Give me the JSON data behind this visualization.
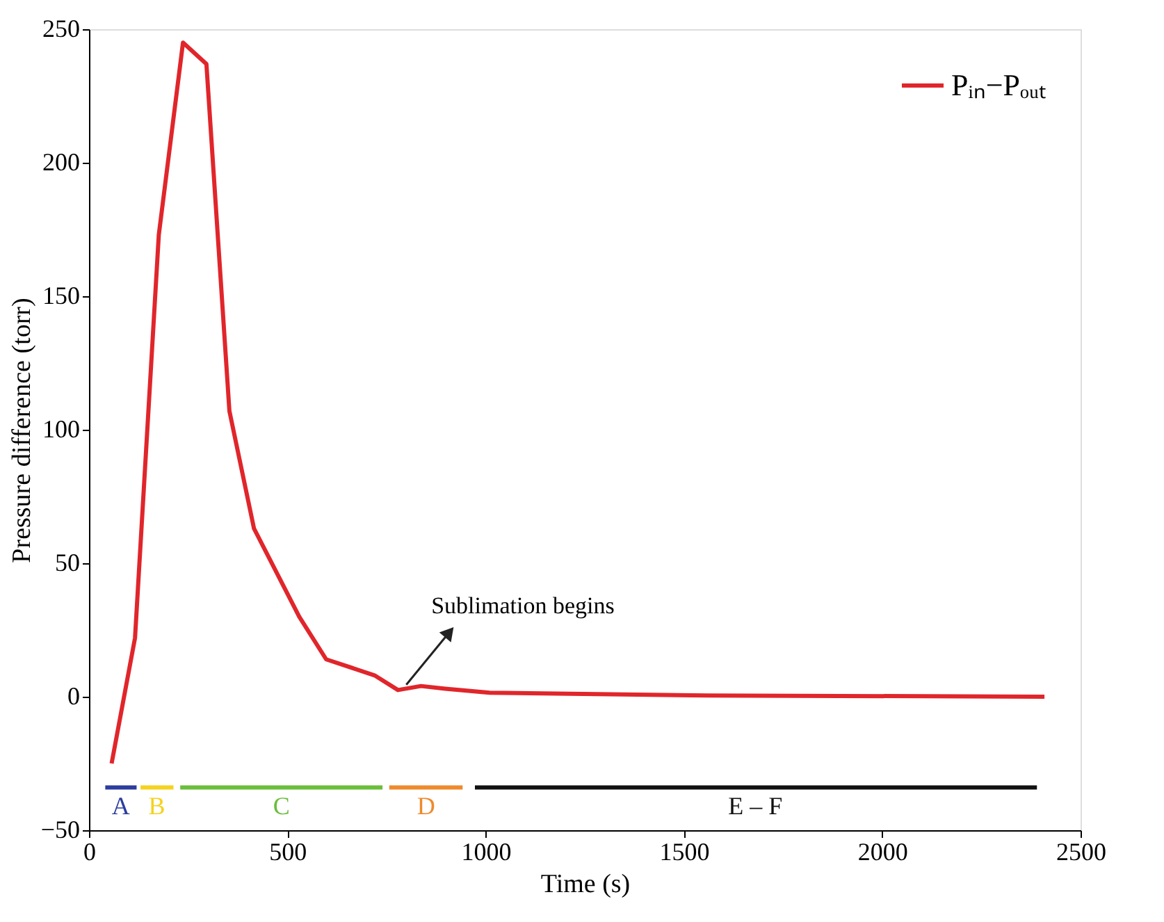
{
  "chart_data": {
    "type": "line",
    "xlabel": "Time (s)",
    "ylabel": "Pressure difference (torr)",
    "xlim": [
      0,
      2500
    ],
    "xticks": [
      0,
      500,
      1000,
      1500,
      2000,
      2500
    ],
    "ylim": [
      -50,
      250
    ],
    "yticks": [
      -50,
      0,
      50,
      100,
      150,
      200,
      250
    ],
    "grid": false,
    "legend": "top right",
    "line_style": "solid",
    "marker": "none",
    "series": [
      {
        "name": "Pᵢₙ−Pₒᵤₜ",
        "color": "#e0262b",
        "x": [
          57,
          116,
          176,
          237,
          296,
          354,
          416,
          530,
          598,
          720,
          779,
          837,
          898,
          1010,
          1520,
          2409
        ],
        "values": [
          -25,
          22,
          173,
          245,
          237,
          107,
          63,
          30,
          14,
          8,
          2.5,
          4,
          3,
          1.5,
          0.5,
          0
        ]
      },
      {
        "color": "#2b3d9e",
        "x": [
          41,
          120
        ],
        "values": [
          -34,
          -34
        ]
      },
      {
        "color": "#f5d21e",
        "x": [
          130,
          213
        ],
        "values": [
          -34,
          -34
        ]
      },
      {
        "color": "#69be3a",
        "x": [
          230,
          740
        ],
        "values": [
          -34,
          -34
        ]
      },
      {
        "color": "#ee8a2c",
        "x": [
          757,
          942
        ],
        "values": [
          -34,
          -34
        ]
      },
      {
        "color": "#111111",
        "x": [
          973,
          2390
        ],
        "values": [
          -34,
          -34
        ]
      }
    ],
    "annotations": [
      {
        "text": "Sublimation begins",
        "x": 780,
        "y": 2.5
      },
      {
        "text": "A",
        "x": 80,
        "y": -34
      },
      {
        "text": "B",
        "x": 171,
        "y": -34
      },
      {
        "text": "C",
        "x": 485,
        "y": -34
      },
      {
        "text": "D",
        "x": 850,
        "y": -34
      },
      {
        "text": "E – F",
        "x": 1680,
        "y": -34
      }
    ]
  }
}
